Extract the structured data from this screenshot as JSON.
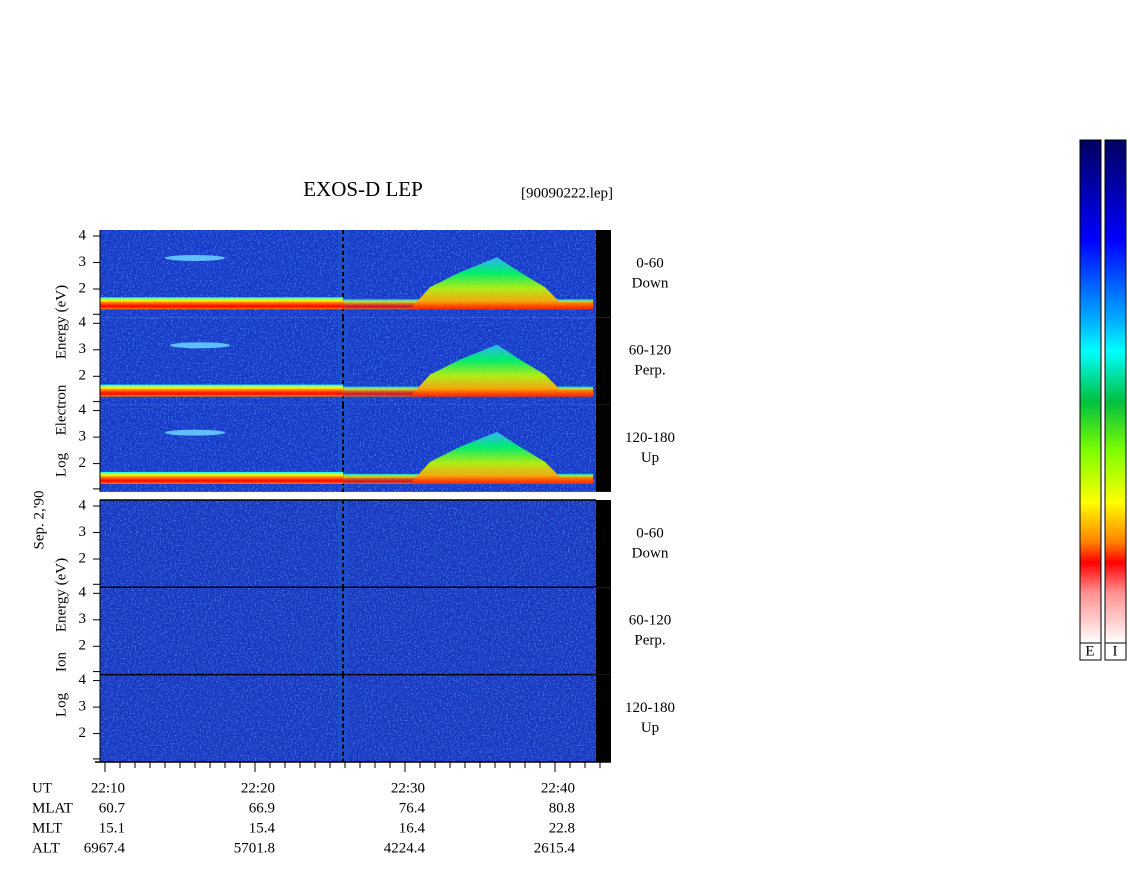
{
  "title": "EXOS-D LEP",
  "file": "[90090222.lep]",
  "date": "Sep. 2,'90",
  "electron": {
    "axis_label": [
      "Log",
      "Electron",
      "Energy (eV)"
    ],
    "panels": [
      {
        "label": [
          "0-60",
          "Down"
        ],
        "ticks": [
          "4",
          "3",
          "2"
        ]
      },
      {
        "label": [
          "60-120",
          "Perp."
        ],
        "ticks": [
          "4",
          "3",
          "2"
        ]
      },
      {
        "label": [
          "120-180",
          "Up"
        ],
        "ticks": [
          "4",
          "3",
          "2"
        ]
      }
    ]
  },
  "ion": {
    "axis_label": [
      "Log",
      "Ion",
      "Energy (eV)"
    ],
    "panels": [
      {
        "label": [
          "0-60",
          "Down"
        ],
        "ticks": [
          "4",
          "3",
          "2"
        ]
      },
      {
        "label": [
          "60-120",
          "Perp."
        ],
        "ticks": [
          "4",
          "3",
          "2"
        ]
      },
      {
        "label": [
          "120-180",
          "Up"
        ],
        "ticks": [
          "4",
          "3",
          "2"
        ]
      }
    ]
  },
  "footer": {
    "rows": [
      {
        "label": "UT",
        "values": [
          "22:10",
          "22:20",
          "22:30",
          "22:40"
        ]
      },
      {
        "label": "MLAT",
        "values": [
          "60.7",
          "66.9",
          "76.4",
          "80.8"
        ]
      },
      {
        "label": "MLT",
        "values": [
          "15.1",
          "15.4",
          "16.4",
          "22.8"
        ]
      },
      {
        "label": "ALT",
        "values": [
          "6967.4",
          "5701.8",
          "4224.4",
          "2615.4"
        ]
      }
    ]
  },
  "colorbar": {
    "labels": [
      "E",
      "I"
    ]
  }
}
